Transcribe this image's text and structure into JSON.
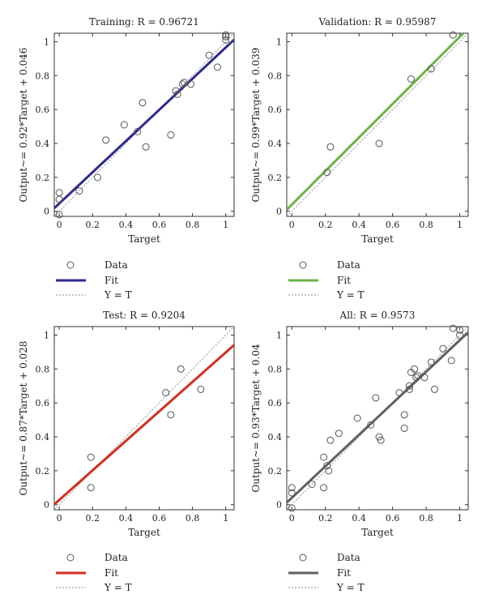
{
  "chart_data": [
    {
      "type": "scatter",
      "title": "Training: R = 0.96721",
      "xlabel": "Target",
      "ylabel": "Output~= 0.92*Target + 0.046",
      "xlim": [
        -0.03,
        1.05
      ],
      "ylim": [
        -0.03,
        1.05
      ],
      "xticks": [
        "0",
        "0.2",
        "0.4",
        "0.6",
        "0.8",
        "1"
      ],
      "yticks": [
        "0",
        "0.2",
        "0.4",
        "0.6",
        "0.8",
        "1"
      ],
      "fit": {
        "slope": 0.92,
        "intercept": 0.046,
        "color": "#2e2a8f"
      },
      "points": [
        {
          "x": 0.0,
          "y": 0.11
        },
        {
          "x": 0.0,
          "y": 0.07
        },
        {
          "x": 0.0,
          "y": -0.02
        },
        {
          "x": 0.12,
          "y": 0.12
        },
        {
          "x": 0.23,
          "y": 0.2
        },
        {
          "x": 0.28,
          "y": 0.42
        },
        {
          "x": 0.39,
          "y": 0.51
        },
        {
          "x": 0.47,
          "y": 0.47
        },
        {
          "x": 0.5,
          "y": 0.64
        },
        {
          "x": 0.52,
          "y": 0.38
        },
        {
          "x": 0.67,
          "y": 0.45
        },
        {
          "x": 0.7,
          "y": 0.71
        },
        {
          "x": 0.71,
          "y": 0.69
        },
        {
          "x": 0.74,
          "y": 0.75
        },
        {
          "x": 0.75,
          "y": 0.76
        },
        {
          "x": 0.79,
          "y": 0.75
        },
        {
          "x": 0.9,
          "y": 0.92
        },
        {
          "x": 0.95,
          "y": 0.85
        },
        {
          "x": 1.0,
          "y": 1.01
        },
        {
          "x": 1.0,
          "y": 1.03
        },
        {
          "x": 1.0,
          "y": 1.04
        }
      ],
      "legend": {
        "data": "Data",
        "fit": "Fit",
        "identity": "Y = T"
      }
    },
    {
      "type": "scatter",
      "title": "Validation: R = 0.95987",
      "xlabel": "Target",
      "ylabel": "Output~= 0.99*Target + 0.039",
      "xlim": [
        -0.03,
        1.05
      ],
      "ylim": [
        -0.03,
        1.05
      ],
      "xticks": [
        "0",
        "0.2",
        "0.4",
        "0.6",
        "0.8",
        "1"
      ],
      "yticks": [
        "0",
        "0.2",
        "0.4",
        "0.6",
        "0.8",
        "1"
      ],
      "fit": {
        "slope": 0.99,
        "intercept": 0.039,
        "color": "#6ab545"
      },
      "points": [
        {
          "x": 0.21,
          "y": 0.23
        },
        {
          "x": 0.23,
          "y": 0.38
        },
        {
          "x": 0.52,
          "y": 0.4
        },
        {
          "x": 0.71,
          "y": 0.78
        },
        {
          "x": 0.83,
          "y": 0.84
        },
        {
          "x": 0.96,
          "y": 1.04
        }
      ],
      "legend": {
        "data": "Data",
        "fit": "Fit",
        "identity": "Y = T"
      }
    },
    {
      "type": "scatter",
      "title": "Test: R = 0.9204",
      "xlabel": "Target",
      "ylabel": "Output~= 0.87*Target + 0.028",
      "xlim": [
        -0.03,
        1.05
      ],
      "ylim": [
        -0.03,
        1.05
      ],
      "xticks": [
        "0",
        "0.2",
        "0.4",
        "0.6",
        "0.8",
        "1"
      ],
      "yticks": [
        "0",
        "0.2",
        "0.4",
        "0.6",
        "0.8",
        "1"
      ],
      "fit": {
        "slope": 0.87,
        "intercept": 0.028,
        "color": "#d22f1f"
      },
      "points": [
        {
          "x": 0.19,
          "y": 0.28
        },
        {
          "x": 0.19,
          "y": 0.1
        },
        {
          "x": 0.64,
          "y": 0.66
        },
        {
          "x": 0.67,
          "y": 0.53
        },
        {
          "x": 0.73,
          "y": 0.8
        },
        {
          "x": 0.85,
          "y": 0.68
        }
      ],
      "legend": {
        "data": "Data",
        "fit": "Fit",
        "identity": "Y = T"
      }
    },
    {
      "type": "scatter",
      "title": "All: R = 0.9573",
      "xlabel": "Target",
      "ylabel": "Output~= 0.93*Target + 0.04",
      "xlim": [
        -0.03,
        1.05
      ],
      "ylim": [
        -0.03,
        1.05
      ],
      "xticks": [
        "0",
        "0.2",
        "0.4",
        "0.6",
        "0.8",
        "1"
      ],
      "yticks": [
        "0",
        "0.2",
        "0.4",
        "0.6",
        "0.8",
        "1"
      ],
      "fit": {
        "slope": 0.93,
        "intercept": 0.04,
        "color": "#606060"
      },
      "points": [
        {
          "x": 0.0,
          "y": 0.1
        },
        {
          "x": 0.0,
          "y": 0.07
        },
        {
          "x": 0.0,
          "y": -0.02
        },
        {
          "x": 0.12,
          "y": 0.12
        },
        {
          "x": 0.19,
          "y": 0.28
        },
        {
          "x": 0.19,
          "y": 0.1
        },
        {
          "x": 0.21,
          "y": 0.23
        },
        {
          "x": 0.22,
          "y": 0.2
        },
        {
          "x": 0.23,
          "y": 0.38
        },
        {
          "x": 0.28,
          "y": 0.42
        },
        {
          "x": 0.39,
          "y": 0.51
        },
        {
          "x": 0.47,
          "y": 0.47
        },
        {
          "x": 0.5,
          "y": 0.63
        },
        {
          "x": 0.52,
          "y": 0.4
        },
        {
          "x": 0.53,
          "y": 0.38
        },
        {
          "x": 0.64,
          "y": 0.66
        },
        {
          "x": 0.67,
          "y": 0.53
        },
        {
          "x": 0.67,
          "y": 0.45
        },
        {
          "x": 0.7,
          "y": 0.7
        },
        {
          "x": 0.7,
          "y": 0.68
        },
        {
          "x": 0.71,
          "y": 0.78
        },
        {
          "x": 0.73,
          "y": 0.8
        },
        {
          "x": 0.74,
          "y": 0.75
        },
        {
          "x": 0.75,
          "y": 0.76
        },
        {
          "x": 0.79,
          "y": 0.75
        },
        {
          "x": 0.83,
          "y": 0.84
        },
        {
          "x": 0.85,
          "y": 0.68
        },
        {
          "x": 0.9,
          "y": 0.92
        },
        {
          "x": 0.95,
          "y": 0.85
        },
        {
          "x": 0.96,
          "y": 1.04
        },
        {
          "x": 1.0,
          "y": 1.0
        },
        {
          "x": 1.0,
          "y": 1.03
        }
      ],
      "legend": {
        "data": "Data",
        "fit": "Fit",
        "identity": "Y = T"
      }
    }
  ]
}
